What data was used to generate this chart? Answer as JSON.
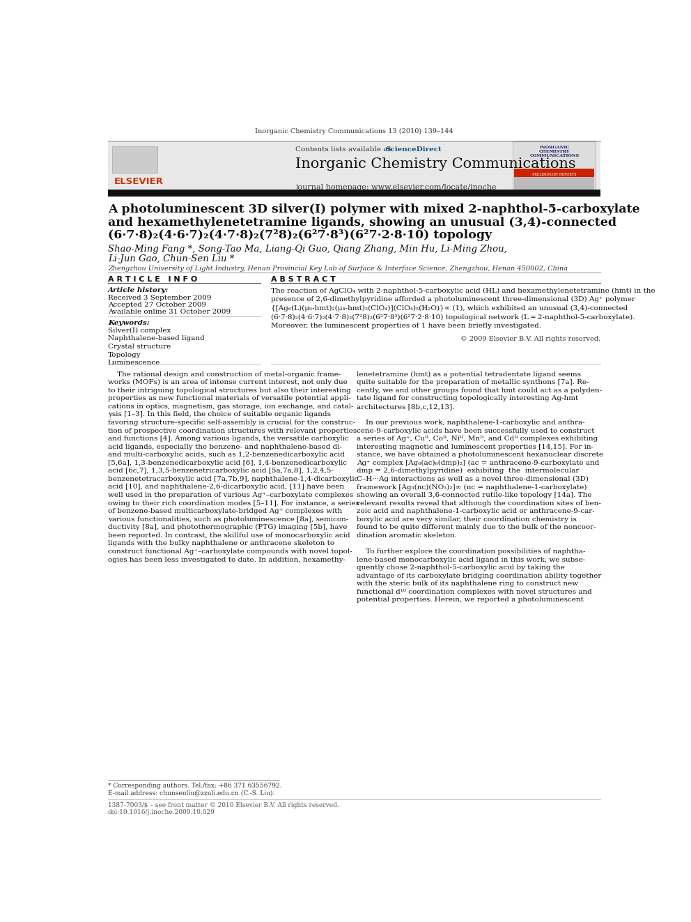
{
  "page_width": 9.92,
  "page_height": 13.23,
  "bg_color": "#ffffff",
  "journal_line": "Inorganic Chemistry Communications 13 (2010) 139–144",
  "header_bg": "#e8e8e8",
  "header_title": "Inorganic Chemistry Communications",
  "header_subtitle": "journal homepage: www.elsevier.com/locate/inoche",
  "header_contents": "Contents lists available at",
  "header_sciencedirect": "ScienceDirect",
  "black_bar_color": "#1a1a1a",
  "paper_title_line1": "A photoluminescent 3D silver(I) polymer with mixed 2-naphthol-5-carboxylate",
  "paper_title_line2": "and hexamethylenetetramine ligands, showing an unusual (3,4)-connected",
  "paper_title_line3": "(6·7·8)₂(4·6·7)₂(4·7·8)₂(7²8)₂(6²7·8³)(6²7·2·8·10) topology",
  "authors_line1": "Shao-Ming Fang *, Song-Tao Ma, Liang-Qi Guo, Qiang Zhang, Min Hu, Li-Ming Zhou,",
  "authors_line2": "Li-Jun Gao, Chun-Sen Liu *",
  "affiliation": "Zhengzhou University of Light Industry, Henan Provincial Key Lab of Surface & Interface Science, Zhengzhou, Henan 450002, China",
  "article_info_header": "A R T I C L E   I N F O",
  "abstract_header": "A B S T R A C T",
  "article_history_label": "Article history:",
  "received": "Received 3 September 2009",
  "accepted": "Accepted 27 October 2009",
  "available": "Available online 31 October 2009",
  "keywords_label": "Keywords:",
  "keywords": [
    "Silver(I) complex",
    "Naphthalene-based ligand",
    "Crystal structure",
    "Topology",
    "Luminescence"
  ],
  "copyright": "© 2009 Elsevier B.V. All rights reserved.",
  "footnote_star": "* Corresponding authors. Tel./fax: +86 371 63556792.",
  "footnote_email": "E-mail address: chunsenliu@zzuli.edu.cn (C.-S. Liu).",
  "footer_line1": "1387-7003/$ – see front matter © 2010 Elsevier B.V. All rights reserved.",
  "footer_line2": "doi:10.1016/j.inoche.2009.10.029",
  "abstract_lines": [
    "The reaction of AgClO₄ with 2-naphthol-5-carboxylic acid (HL) and hexamethylenetetramine (hmt) in the",
    "presence of 2,6-dimethylpyridine afforded a photoluminescent three-dimensional (3D) Ag⁺ polymer",
    "{[Ag₆(L)(μ₅-hmt)₂(μ₄-hmt)₂(ClO₄)](ClO₄)₅(H₂O)}∞ (1), which exhibited an unusual (3,4)-connected",
    "(6·7·8)₂(4·6·7)₂(4·7·8)₂(7²8)₂(6²7·8³)(6²7·2·8·10) topological network (L = 2-naphthol-5-carboxylate).",
    "Moreover, the luminescent properties of 1 have been briefly investigated."
  ],
  "body1_lines": [
    "    The rational design and construction of metal-organic frame-",
    "works (MOFs) is an area of intense current interest, not only due",
    "to their intriguing topological structures but also their interesting",
    "properties as new functional materials of versatile potential appli-",
    "cations in optics, magnetism, gas storage, ion exchange, and catal-",
    "ysis [1–3]. In this field, the choice of suitable organic ligands",
    "favoring structure-specific self-assembly is crucial for the construc-",
    "tion of prospective coordination structures with relevant properties",
    "and functions [4]. Among various ligands, the versatile carboxylic",
    "acid ligands, especially the benzene- and naphthalene-based di-",
    "and multi-carboxylic acids, such as 1,2-benzenedicarboxylic acid",
    "[5,6a], 1,3-benzenedicarboxylic acid [6], 1,4-benzenedicarboxylic",
    "acid [6c,7], 1,3,5-benzenetricarboxylic acid [5a,7a,8], 1,2,4,5-",
    "benzenetetracarboxylic acid [7a,7b,9], naphthalene-1,4-dicarboxylic",
    "acid [10], and naphthalene-2,6-dicarboxylic acid, [11] have been",
    "well used in the preparation of various Ag⁺–carboxylate complexes",
    "owing to their rich coordination modes [5–11]. For instance, a series",
    "of benzene-based multicarboxylate-bridged Ag⁺ complexes with",
    "various functionalities, such as photoluminescence [8a], semicon-",
    "ductivity [8a], and photothermographic (PTG) imaging [5b], have",
    "been reported. In contrast, the skillful use of monocarboxylic acid",
    "ligands with the bulky naphthalene or anthracene skeleton to",
    "construct functional Ag⁺–carboxylate compounds with novel topol-",
    "ogies has been less investigated to date. In addition, hexamethy-"
  ],
  "body2_lines": [
    "lenetetramine (hmt) as a potential tetradentate ligand seems",
    "quite suitable for the preparation of metallic synthons [7a]. Re-",
    "cently, we and other groups found that hmt could act as a polyden-",
    "tate ligand for constructing topologically interesting Ag-hmt",
    "architectures [8b,c,12,13].",
    "",
    "    In our previous work, naphthalene-1-carboxylic and anthra-",
    "cene-9-carboxylic acids have been successfully used to construct",
    "a series of Ag⁺, Cuᴵᴵ, Coᴵᴵ, Niᴵᴵ, Mnᴵᴵ, and Cdᴵᴵ complexes exhibiting",
    "interesting magnetic and luminescent properties [14,15]. For in-",
    "stance, we have obtained a photoluminescent hexanuclear discrete",
    "Ag⁺ complex [Ag₆(ac)₆(dmp)₂] (ac = anthracene-9-carboxylate and",
    "dmp = 2,6-dimethylpyridine)  exhibiting  the  intermolecular",
    "C–H···Ag interactions as well as a novel three-dimensional (3D)",
    "framework [Ag₃(nc)(NO₃)₂]∞ (nc = naphthalene-1-carboxylate)",
    "showing an overall 3,6-connected rutile-like topology [14a]. The",
    "relevant results reveal that although the coordination sites of ben-",
    "zoic acid and naphthalene-1-carboxylic acid or anthracene-9-car-",
    "boxylic acid are very similar, their coordination chemistry is",
    "found to be quite different mainly due to the bulk of the noncoor-",
    "dination aromatic skeleton.",
    "",
    "    To further explore the coordination possibilities of naphtha-",
    "lene-based monocarboxylic acid ligand in this work, we subse-",
    "quently chose 2-naphthol-5-carboxylic acid by taking the",
    "advantage of its carboxylate bridging coordination ability together",
    "with the steric bulk of its naphthalene ring to construct new",
    "functional d¹⁰ coordination complexes with novel structures and",
    "potential properties. Herein, we reported a photoluminescent"
  ]
}
